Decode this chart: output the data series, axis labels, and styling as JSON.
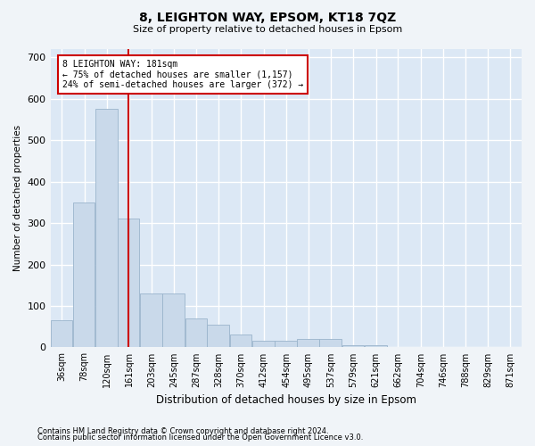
{
  "title": "8, LEIGHTON WAY, EPSOM, KT18 7QZ",
  "subtitle": "Size of property relative to detached houses in Epsom",
  "xlabel": "Distribution of detached houses by size in Epsom",
  "ylabel": "Number of detached properties",
  "footnote1": "Contains HM Land Registry data © Crown copyright and database right 2024.",
  "footnote2": "Contains public sector information licensed under the Open Government Licence v3.0.",
  "bar_color": "#c9d9ea",
  "bar_edge_color": "#9ab4cc",
  "background_color": "#dce8f5",
  "grid_color": "#ffffff",
  "fig_bg_color": "#f0f4f8",
  "vline_color": "#cc0000",
  "vline_x": 181,
  "annotation_text": "8 LEIGHTON WAY: 181sqm\n← 75% of detached houses are smaller (1,157)\n24% of semi-detached houses are larger (372) →",
  "annotation_box_color": "#ffffff",
  "annotation_box_edge": "#cc0000",
  "categories": [
    "36sqm",
    "78sqm",
    "120sqm",
    "161sqm",
    "203sqm",
    "245sqm",
    "287sqm",
    "328sqm",
    "370sqm",
    "412sqm",
    "454sqm",
    "495sqm",
    "537sqm",
    "579sqm",
    "621sqm",
    "662sqm",
    "704sqm",
    "746sqm",
    "788sqm",
    "829sqm",
    "871sqm"
  ],
  "bin_edges": [
    36,
    78,
    120,
    161,
    203,
    245,
    287,
    328,
    370,
    412,
    454,
    495,
    537,
    579,
    621,
    662,
    704,
    746,
    788,
    829,
    871
  ],
  "bin_width": 42,
  "values": [
    65,
    350,
    575,
    310,
    130,
    130,
    70,
    55,
    30,
    15,
    15,
    20,
    20,
    5,
    5,
    0,
    0,
    0,
    0,
    0,
    0
  ],
  "ylim": [
    0,
    720
  ],
  "yticks": [
    0,
    100,
    200,
    300,
    400,
    500,
    600,
    700
  ]
}
